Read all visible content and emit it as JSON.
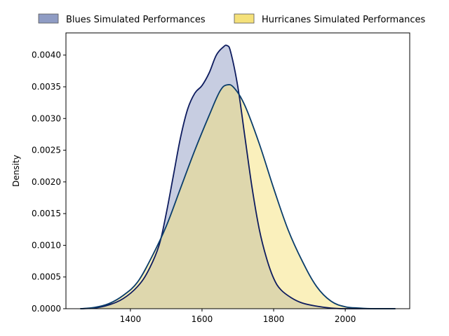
{
  "chart_data": {
    "type": "area",
    "title": "",
    "xlabel": "",
    "ylabel": "Density",
    "xlim": [
      1220,
      2180
    ],
    "ylim": [
      0,
      0.00435
    ],
    "x_ticks": [
      1400,
      1600,
      1800,
      2000
    ],
    "x_tick_labels": [
      "1400",
      "1600",
      "1800",
      "2000"
    ],
    "y_ticks": [
      0,
      0.0005,
      0.001,
      0.0015,
      0.002,
      0.0025,
      0.003,
      0.0035,
      0.004
    ],
    "y_tick_labels": [
      "0.0000",
      "0.0005",
      "0.0010",
      "0.0015",
      "0.0020",
      "0.0025",
      "0.0030",
      "0.0035",
      "0.0040"
    ],
    "grid": false,
    "legend_position": "top, outside plot",
    "series": [
      {
        "name": "Blues Simulated Performances",
        "fill_color": "#8f9cc4",
        "fill_opacity": 0.5,
        "line_color": "#0d1b5e",
        "legend_swatch_color": "#8f9cc4",
        "x": [
          1260,
          1300,
          1340,
          1380,
          1420,
          1450,
          1480,
          1500,
          1520,
          1540,
          1560,
          1580,
          1600,
          1620,
          1640,
          1660,
          1670,
          1680,
          1700,
          1720,
          1740,
          1760,
          1780,
          1800,
          1820,
          1850,
          1880,
          1920,
          1960,
          2000,
          2040,
          2080,
          2140
        ],
        "y": [
          0,
          1e-05,
          6e-05,
          0.00016,
          0.00035,
          0.0006,
          0.001,
          0.0015,
          0.0021,
          0.0027,
          0.00315,
          0.0034,
          0.00352,
          0.00372,
          0.004,
          0.00413,
          0.00415,
          0.00405,
          0.0035,
          0.0027,
          0.0019,
          0.00125,
          0.0008,
          0.00048,
          0.0003,
          0.00017,
          9e-05,
          4e-05,
          1e-05,
          0,
          0,
          0,
          0
        ]
      },
      {
        "name": "Hurricanes Simulated Performances",
        "fill_color": "#f5e17a",
        "fill_opacity": 0.5,
        "line_color": "#0a3d6b",
        "legend_swatch_color": "#f5e17a",
        "x": [
          1260,
          1300,
          1340,
          1380,
          1420,
          1460,
          1500,
          1540,
          1580,
          1620,
          1650,
          1670,
          1690,
          1720,
          1760,
          1800,
          1840,
          1880,
          1920,
          1960,
          2000,
          2040,
          2080,
          2140
        ],
        "y": [
          0,
          2e-05,
          8e-05,
          0.00021,
          0.00042,
          0.00082,
          0.0013,
          0.0019,
          0.0025,
          0.00305,
          0.00343,
          0.00353,
          0.00348,
          0.0032,
          0.0026,
          0.0019,
          0.00125,
          0.00075,
          0.00035,
          0.00012,
          3e-05,
          1e-05,
          0,
          0
        ]
      }
    ]
  }
}
